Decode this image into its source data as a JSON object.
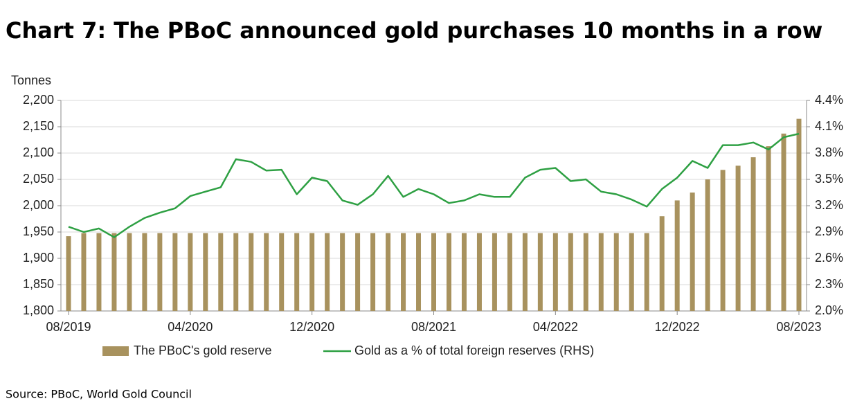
{
  "chart_data": {
    "type": "bar_line",
    "title": "Chart 7: The PBoC announced gold purchases 10 months in a row",
    "y_axis_label": "Tonnes",
    "source": "Source: PBoC, World Gold Council",
    "categories": [
      "08/2019",
      null,
      null,
      null,
      null,
      null,
      null,
      null,
      "04/2020",
      null,
      null,
      null,
      null,
      null,
      null,
      null,
      "12/2020",
      null,
      null,
      null,
      null,
      null,
      null,
      null,
      "08/2021",
      null,
      null,
      null,
      null,
      null,
      null,
      null,
      "04/2022",
      null,
      null,
      null,
      null,
      null,
      null,
      null,
      "12/2022",
      null,
      null,
      null,
      null,
      null,
      null,
      null,
      "08/2023"
    ],
    "series": [
      {
        "name": "The PBoC's gold reserve",
        "type": "bar",
        "color": "#a8925e",
        "values": [
          1942,
          1948,
          1948,
          1948,
          1948,
          1948,
          1948,
          1948,
          1948,
          1948,
          1948,
          1948,
          1948,
          1948,
          1948,
          1948,
          1948,
          1948,
          1948,
          1948,
          1948,
          1948,
          1948,
          1948,
          1948,
          1948,
          1948,
          1948,
          1948,
          1948,
          1948,
          1948,
          1948,
          1948,
          1948,
          1948,
          1948,
          1948,
          1948,
          1980,
          2010,
          2025,
          2050,
          2068,
          2076,
          2092,
          2113,
          2137,
          2165
        ]
      },
      {
        "name": "Gold as a % of total foreign reserves (RHS)",
        "type": "line",
        "axis": "y2",
        "color": "#2ea043",
        "values": [
          2.96,
          2.9,
          2.94,
          2.84,
          2.96,
          3.06,
          3.12,
          3.17,
          3.31,
          3.36,
          3.41,
          3.73,
          3.7,
          3.6,
          3.61,
          3.33,
          3.52,
          3.48,
          3.26,
          3.21,
          3.33,
          3.54,
          3.3,
          3.39,
          3.33,
          3.23,
          3.26,
          3.33,
          3.3,
          3.3,
          3.52,
          3.61,
          3.63,
          3.48,
          3.5,
          3.36,
          3.33,
          3.27,
          3.19,
          3.39,
          3.52,
          3.71,
          3.63,
          3.89,
          3.89,
          3.92,
          3.84,
          3.98,
          4.02
        ]
      }
    ],
    "ylim": [
      1800,
      2200
    ],
    "yticks": [
      {
        "value": 1800,
        "label": "1,800"
      },
      {
        "value": 1850,
        "label": "1,850"
      },
      {
        "value": 1900,
        "label": "1,900"
      },
      {
        "value": 1950,
        "label": "1,950"
      },
      {
        "value": 2000,
        "label": "2,000"
      },
      {
        "value": 2050,
        "label": "2,050"
      },
      {
        "value": 2100,
        "label": "2,100"
      },
      {
        "value": 2150,
        "label": "2,150"
      },
      {
        "value": 2200,
        "label": "2,200"
      }
    ],
    "y2lim": [
      2.0,
      4.4
    ],
    "y2ticks": [
      {
        "value": 2.0,
        "label": "2.0%"
      },
      {
        "value": 2.3,
        "label": "2.3%"
      },
      {
        "value": 2.6,
        "label": "2.6%"
      },
      {
        "value": 2.9,
        "label": "2.9%"
      },
      {
        "value": 3.2,
        "label": "3.2%"
      },
      {
        "value": 3.5,
        "label": "3.5%"
      },
      {
        "value": 3.8,
        "label": "3.8%"
      },
      {
        "value": 4.1,
        "label": "4.1%"
      },
      {
        "value": 4.4,
        "label": "4.4%"
      }
    ],
    "grid": true,
    "legend": "bottom"
  }
}
